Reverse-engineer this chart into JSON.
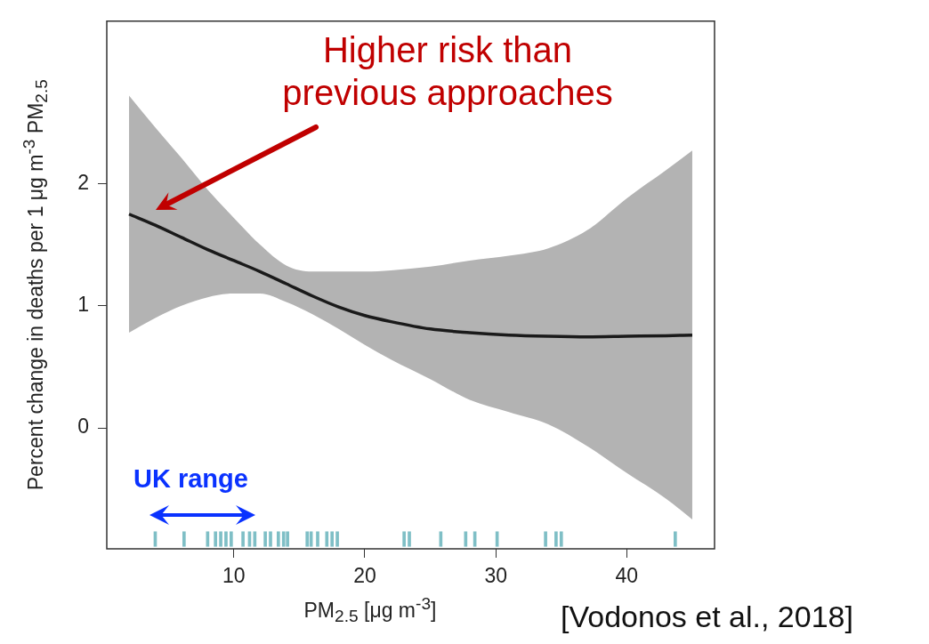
{
  "chart_data": {
    "type": "line",
    "xlabel": "PM$_{2.5}$ [μg m$^{-3}$]",
    "ylabel": "Percent change in deaths per 1  μg m$^{-3}$ PM$_{2.5}$",
    "xlim": [
      0.3,
      46.7
    ],
    "ylim": [
      -0.99,
      3.33
    ],
    "xticks": [
      10,
      20,
      30,
      40
    ],
    "yticks": [
      0,
      1,
      2
    ],
    "series": [
      {
        "color": "#1a1a1a",
        "x": [
          2,
          4,
          6,
          8,
          10,
          12,
          14,
          16,
          18,
          20,
          22,
          25,
          28,
          31,
          34,
          37,
          40,
          43,
          45
        ],
        "values": [
          1.75,
          1.66,
          1.56,
          1.46,
          1.37,
          1.28,
          1.18,
          1.08,
          0.99,
          0.92,
          0.87,
          0.81,
          0.78,
          0.76,
          0.75,
          0.745,
          0.75,
          0.755,
          0.76
        ],
        "lower": [
          0.78,
          0.9,
          1.0,
          1.07,
          1.1,
          1.1,
          1.03,
          0.93,
          0.81,
          0.68,
          0.56,
          0.4,
          0.23,
          0.13,
          0.03,
          -0.15,
          -0.37,
          -0.58,
          -0.75
        ],
        "upper": [
          2.72,
          2.46,
          2.21,
          1.95,
          1.72,
          1.5,
          1.33,
          1.28,
          1.28,
          1.28,
          1.29,
          1.32,
          1.37,
          1.41,
          1.47,
          1.62,
          1.88,
          2.11,
          2.27
        ]
      },
      {
        "type": "bar",
        "color": "#7fbfc6",
        "base": [
          -0.97,
          -0.97,
          -0.97,
          -0.97,
          -0.97,
          -0.97,
          -0.97,
          -0.97,
          -0.97,
          -0.97,
          -0.97,
          -0.97,
          -0.97,
          -0.97,
          -0.97,
          -0.97,
          -0.97,
          -0.97,
          -0.97,
          -0.97,
          -0.97,
          -0.97,
          -0.97,
          -0.97,
          -0.97,
          -0.97,
          -0.97,
          -0.97,
          -0.97,
          -0.97,
          -0.97
        ],
        "x": [
          4.0,
          6.2,
          8.0,
          8.6,
          9.0,
          9.4,
          9.8,
          10.7,
          11.2,
          11.6,
          12.4,
          12.8,
          13.4,
          13.8,
          14.1,
          15.6,
          15.9,
          16.4,
          17.1,
          17.5,
          17.9,
          23.0,
          23.4,
          25.8,
          27.7,
          28.4,
          30.1,
          33.8,
          34.6,
          35.0,
          43.7
        ],
        "values": [
          0.12,
          0.12,
          0.12,
          0.12,
          0.12,
          0.12,
          0.12,
          0.12,
          0.12,
          0.12,
          0.12,
          0.12,
          0.12,
          0.12,
          0.12,
          0.12,
          0.12,
          0.12,
          0.12,
          0.12,
          0.12,
          0.12,
          0.12,
          0.12,
          0.12,
          0.12,
          0.12,
          0.12,
          0.12,
          0.12,
          0.12
        ]
      }
    ],
    "annotations": [
      "Higher risk than previous approaches",
      "UK range",
      "[Vodonos et al., 2018]"
    ]
  }
}
